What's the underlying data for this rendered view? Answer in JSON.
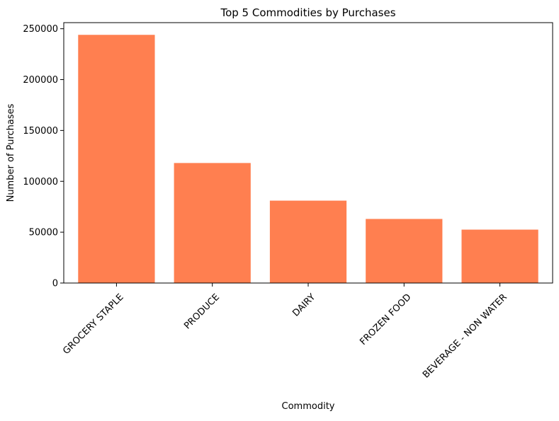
{
  "chart_data": {
    "type": "bar",
    "title": "Top 5 Commodities by Purchases",
    "xlabel": "Commodity",
    "ylabel": "Number of Purchases",
    "categories": [
      "GROCERY STAPLE",
      "PRODUCE",
      "DAIRY",
      "FROZEN FOOD",
      "BEVERAGE - NON WATER"
    ],
    "values": [
      244000,
      118000,
      81000,
      63000,
      52500
    ],
    "ylim": [
      0,
      256000
    ],
    "yticks": [
      0,
      50000,
      100000,
      150000,
      200000,
      250000
    ],
    "ytick_labels": [
      "0",
      "50000",
      "100000",
      "150000",
      "200000",
      "250000"
    ],
    "bar_color": "#ff7f50",
    "grid": false,
    "legend": "none"
  }
}
